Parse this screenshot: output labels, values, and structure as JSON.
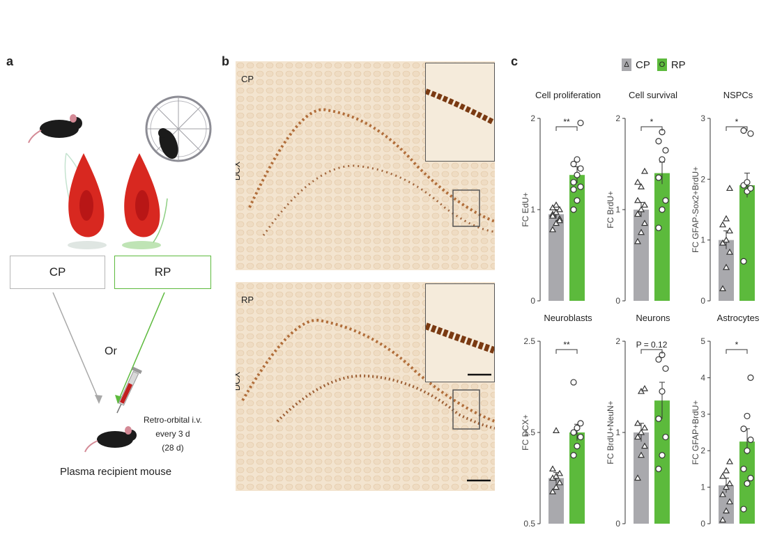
{
  "panel_a": {
    "letter": "a",
    "cp_label": "CP",
    "rp_label": "RP",
    "or_label": "Or",
    "injection_lines": [
      "Retro-orbital i.v.",
      "every 3 d",
      "(28 d)"
    ],
    "recipient_label": "Plasma recipient mouse"
  },
  "panel_b": {
    "letter": "b",
    "top_condition": "CP",
    "bottom_condition": "RP",
    "stain_label": "DCX"
  },
  "panel_c": {
    "letter": "c",
    "legend": [
      {
        "symbol": "Δ",
        "label": "CP",
        "color": "#a9a9ad"
      },
      {
        "symbol": "O",
        "label": "RP",
        "color": "#5cba3c"
      }
    ]
  },
  "chart_data": [
    {
      "type": "bar",
      "title": "Cell proliferation",
      "ylabel": "FC EdU+",
      "ylim": [
        0,
        2
      ],
      "yticks": [
        "0",
        "1",
        "2"
      ],
      "categories": [
        "CP",
        "RP"
      ],
      "values": [
        0.95,
        1.38
      ],
      "errors": [
        0.05,
        0.09
      ],
      "points": [
        [
          0.78,
          0.85,
          0.9,
          0.95,
          0.97,
          1.0,
          1.02,
          1.05,
          0.88,
          0.93
        ],
        [
          1.0,
          1.1,
          1.25,
          1.3,
          1.38,
          1.45,
          1.5,
          1.55,
          1.95,
          1.22
        ]
      ],
      "significance": "**"
    },
    {
      "type": "bar",
      "title": "Cell survival",
      "ylabel": "FC BrdU+",
      "ylim": [
        0,
        2
      ],
      "yticks": [
        "0",
        "1",
        "2"
      ],
      "categories": [
        "CP",
        "RP"
      ],
      "values": [
        1.0,
        1.4
      ],
      "errors": [
        0.08,
        0.12
      ],
      "points": [
        [
          0.65,
          0.75,
          0.85,
          0.95,
          1.0,
          1.05,
          1.1,
          1.25,
          1.42,
          1.3
        ],
        [
          0.8,
          1.0,
          1.1,
          1.35,
          1.55,
          1.65,
          1.75,
          1.85
        ]
      ],
      "significance": "*"
    },
    {
      "type": "bar",
      "title": "NSPCs",
      "ylabel": "FC GFAP-Sox2+BrdU+",
      "ylim": [
        0,
        3
      ],
      "yticks": [
        "0",
        "1",
        "2",
        "3"
      ],
      "categories": [
        "CP",
        "RP"
      ],
      "values": [
        1.0,
        1.9
      ],
      "errors": [
        0.15,
        0.2
      ],
      "points": [
        [
          0.2,
          0.55,
          0.8,
          0.95,
          1.0,
          1.15,
          1.25,
          1.35,
          1.85
        ],
        [
          0.65,
          1.8,
          1.85,
          1.9,
          1.95,
          2.75,
          2.8
        ]
      ],
      "significance": "*"
    },
    {
      "type": "bar",
      "title": "Neuroblasts",
      "ylabel": "FC DCX+",
      "ylim": [
        0.5,
        2.5
      ],
      "yticks": [
        "0.5",
        "1.5",
        "2.5"
      ],
      "categories": [
        "CP",
        "RP"
      ],
      "values": [
        1.0,
        1.5
      ],
      "errors": [
        0.06,
        0.09
      ],
      "points": [
        [
          0.85,
          0.9,
          0.95,
          1.0,
          1.02,
          1.05,
          1.1,
          1.52
        ],
        [
          1.25,
          1.35,
          1.45,
          1.5,
          1.55,
          1.6,
          2.05
        ]
      ],
      "significance": "**"
    },
    {
      "type": "bar",
      "title": "Neurons",
      "ylabel": "FC BrdU+NeuN+",
      "ylim": [
        0,
        2
      ],
      "yticks": [
        "0",
        "1",
        "2"
      ],
      "categories": [
        "CP",
        "RP"
      ],
      "values": [
        1.0,
        1.35
      ],
      "errors": [
        0.1,
        0.2
      ],
      "points": [
        [
          0.5,
          0.75,
          0.85,
          0.95,
          1.0,
          1.05,
          1.1,
          1.45,
          1.48
        ],
        [
          0.6,
          0.75,
          0.95,
          1.15,
          1.45,
          1.7,
          1.8,
          1.85
        ]
      ],
      "significance": "P = 0.12"
    },
    {
      "type": "bar",
      "title": "Astrocytes",
      "ylabel": "FC GFAP+BrdU+",
      "ylim": [
        0,
        5
      ],
      "yticks": [
        "0",
        "1",
        "2",
        "3",
        "4",
        "5"
      ],
      "categories": [
        "CP",
        "RP"
      ],
      "values": [
        1.05,
        2.25
      ],
      "errors": [
        0.2,
        0.35
      ],
      "points": [
        [
          0.1,
          0.35,
          0.6,
          0.8,
          1.0,
          1.1,
          1.3,
          1.45,
          1.7
        ],
        [
          0.4,
          1.1,
          1.25,
          1.5,
          2.0,
          2.3,
          2.6,
          2.95,
          4.0
        ]
      ],
      "significance": "*"
    }
  ]
}
